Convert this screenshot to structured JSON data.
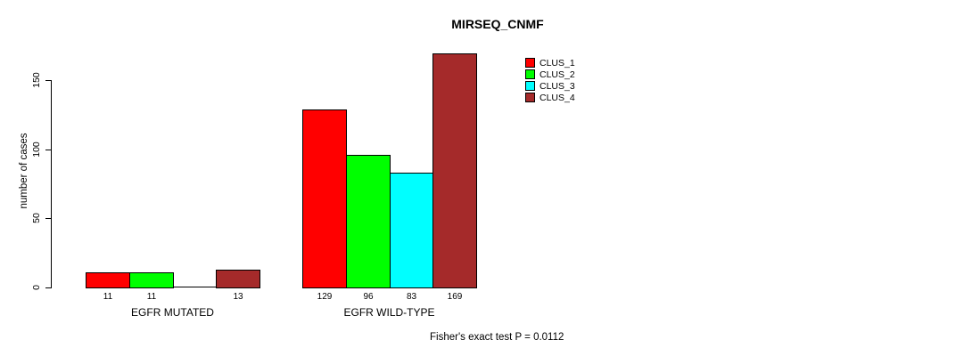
{
  "title": "MIRSEQ_CNMF",
  "footer": "Fisher's exact test P = 0.0112",
  "chart_data": {
    "type": "bar",
    "title": "MIRSEQ_CNMF",
    "xlabel": "",
    "ylabel": "number of cases",
    "ylim": [
      0,
      175
    ],
    "yticks": [
      0,
      50,
      100,
      150
    ],
    "grid": false,
    "legend_position": "top-right",
    "categories": [
      "EGFR MUTATED",
      "EGFR WILD-TYPE"
    ],
    "series": [
      {
        "name": "CLUS_1",
        "color": "#ff0000",
        "values": [
          11,
          129
        ]
      },
      {
        "name": "CLUS_2",
        "color": "#00ff00",
        "values": [
          11,
          96
        ]
      },
      {
        "name": "CLUS_3",
        "color": "#00ffff",
        "values": [
          0,
          83
        ]
      },
      {
        "name": "CLUS_4",
        "color": "#a52a2a",
        "values": [
          13,
          169
        ]
      }
    ],
    "bar_value_labels": [
      [
        "11",
        "11",
        "",
        "13"
      ],
      [
        "129",
        "96",
        "83",
        "169"
      ]
    ],
    "annotation": "Fisher's exact test P = 0.0112"
  }
}
